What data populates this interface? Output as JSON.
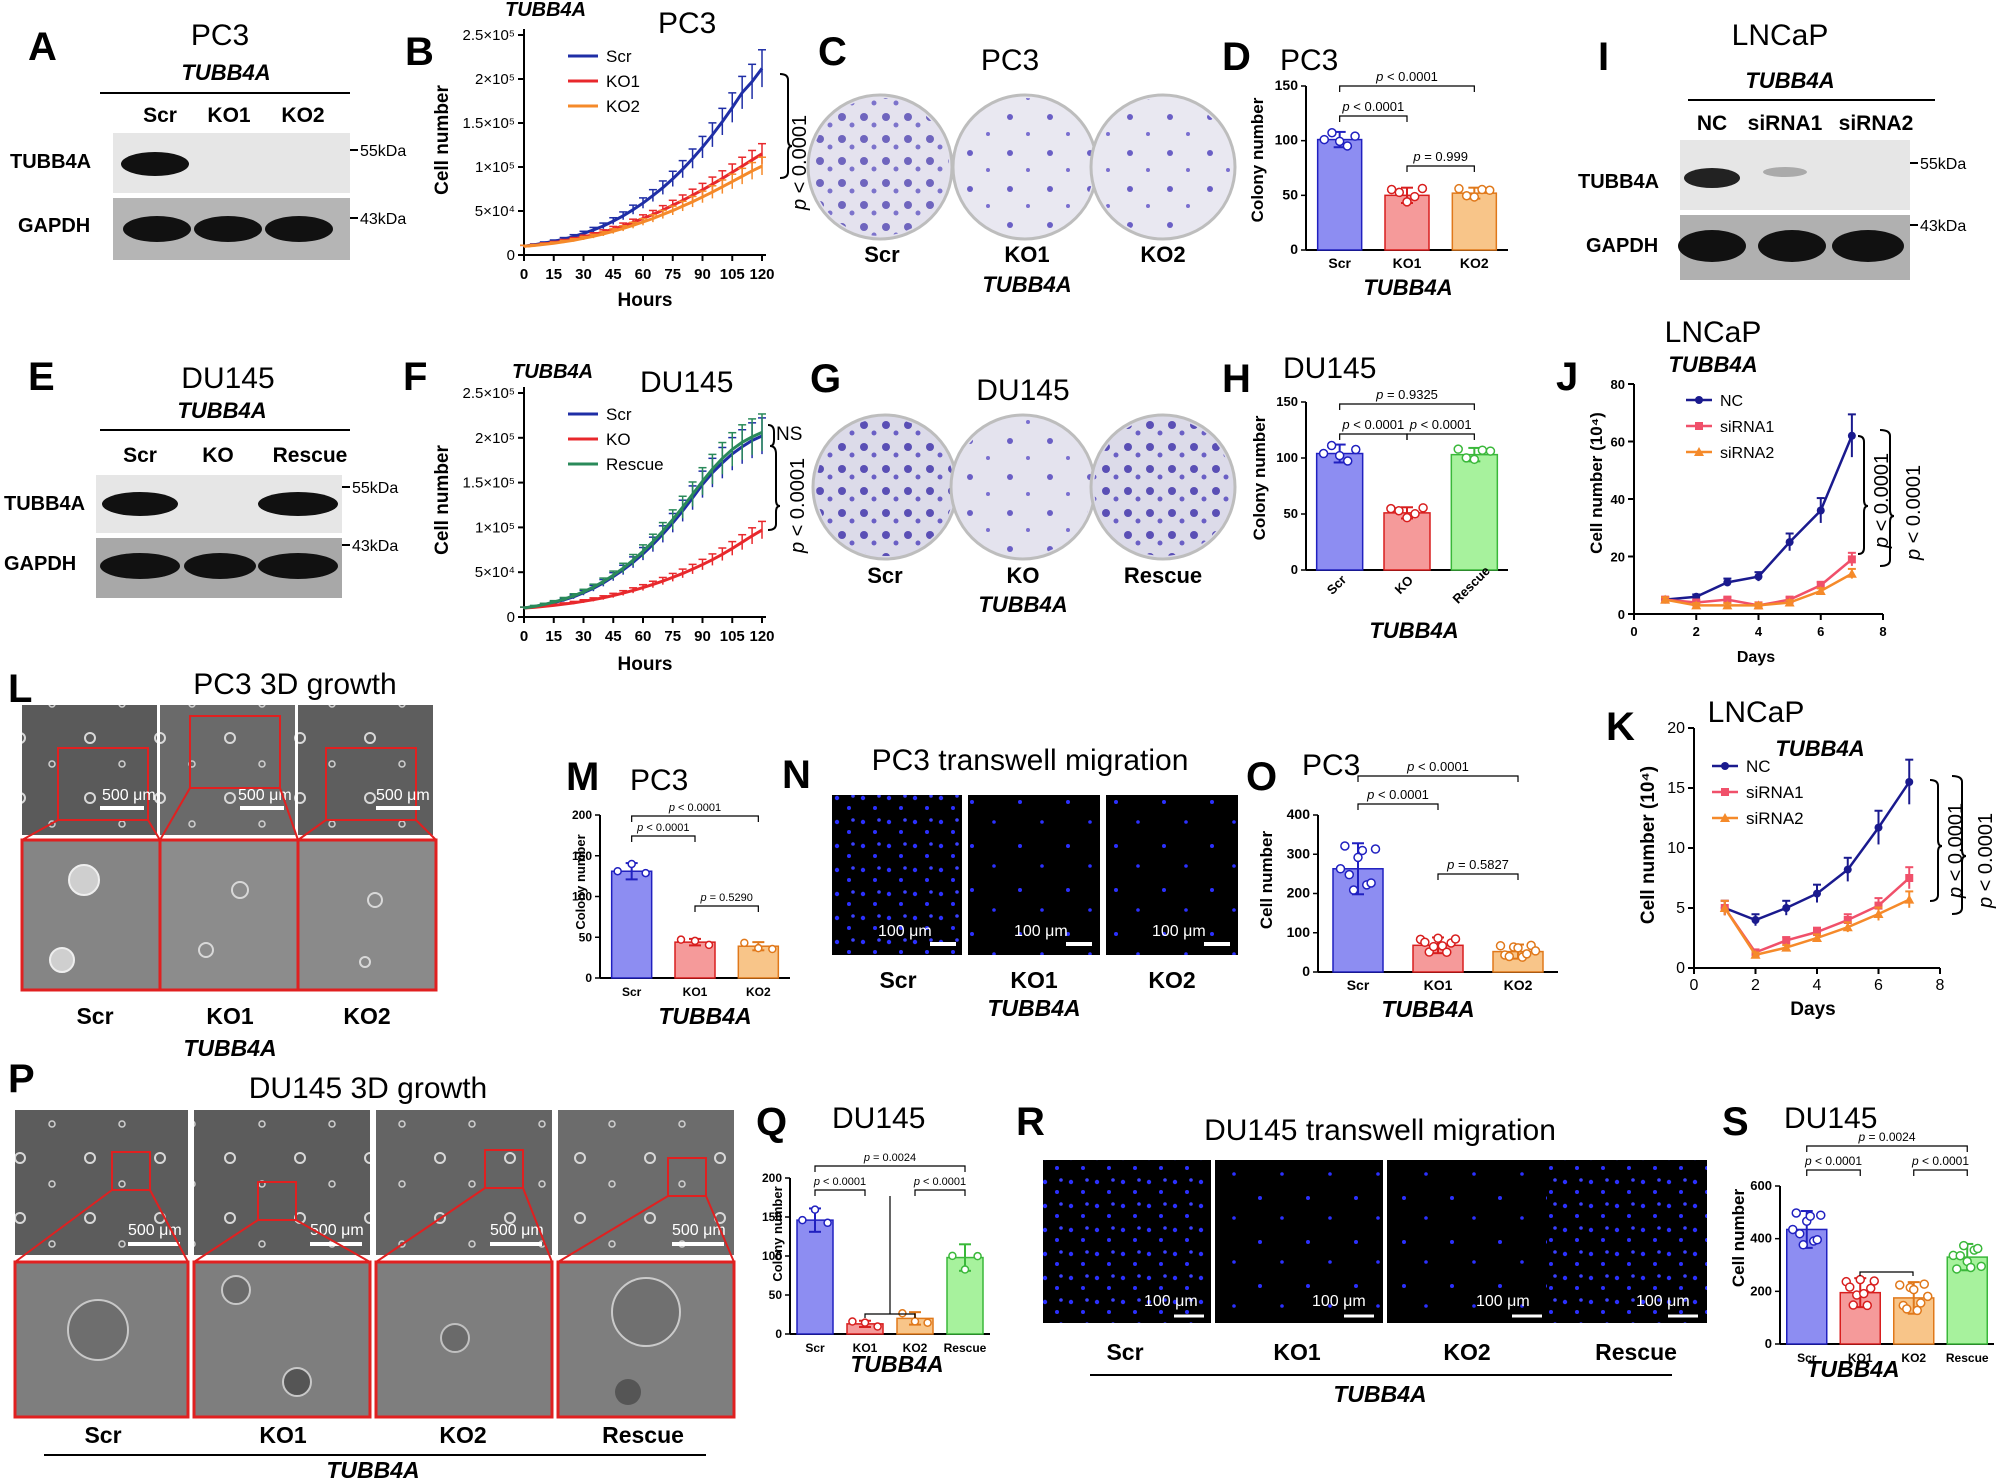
{
  "panel_letters": {
    "A": "A",
    "B": "B",
    "C": "C",
    "D": "D",
    "E": "E",
    "F": "F",
    "G": "G",
    "H": "H",
    "I": "I",
    "J": "J",
    "K": "K",
    "L": "L",
    "M": "M",
    "N": "N",
    "O": "O",
    "P": "P",
    "Q": "Q",
    "R": "R",
    "S": "S"
  },
  "gene": "TUBB4A",
  "cells": {
    "pc3": "PC3",
    "du145": "DU145",
    "lncap": "LNCaP"
  },
  "labels": {
    "scr": "Scr",
    "ko": "KO",
    "ko1": "KO1",
    "ko2": "KO2",
    "rescue": "Rescue",
    "nc": "NC",
    "sirna1": "siRNA1",
    "sirna2": "siRNA2",
    "tubb4a_band": "TUBB4A",
    "gapdh_band": "GAPDH",
    "kda55": "55kDa",
    "kda43": "43kDa",
    "hours": "Hours",
    "days": "Days",
    "cell_number": "Cell number",
    "colony_number": "Colony number",
    "cell_number_1e4": "Cell number (10⁴)",
    "ns": "NS",
    "bar500": "500 μm",
    "bar100": "100 μm"
  },
  "titles": {
    "pc3_3d": "PC3 3D growth",
    "du145_3d": "DU145 3D growth",
    "pc3_tw": "PC3 transwell migration",
    "du145_tw": "DU145 transwell migration"
  },
  "pvals": {
    "p0001": "p < 0.0001",
    "p_italic": "p",
    "lt0001": "< 0.0001",
    "d_999": "p = 0.999",
    "h_9325": "p = 0.9325",
    "m_5290": "p = 0.5290",
    "o_5827": "p = 0.5827",
    "q_0024": "p = 0.0024",
    "s_0024": "p = 0.0024"
  },
  "colors": {
    "blue": "#1f2ea6",
    "blue_bar": "#8d8df2",
    "red": "#e8282c",
    "red_bar": "#f59a9a",
    "orange": "#f58a2a",
    "orange_bar": "#f8c589",
    "green": "#2a8a5a",
    "green_bar": "#a7f29d",
    "navy": "#1a1a8e",
    "pink": "#f0506a"
  },
  "chart_data": [
    {
      "panel": "B",
      "type": "line",
      "title": "PC3",
      "xlabel": "Hours",
      "ylabel": "Cell number",
      "xlim": [
        0,
        120
      ],
      "ylim": [
        0,
        250000
      ],
      "x": [
        0,
        5,
        10,
        15,
        20,
        25,
        30,
        35,
        40,
        45,
        50,
        55,
        60,
        65,
        70,
        75,
        80,
        85,
        90,
        95,
        100,
        105,
        110,
        115,
        120
      ],
      "series": [
        {
          "name": "Scr",
          "values": [
            10000,
            11500,
            13500,
            15500,
            18000,
            21000,
            24500,
            28500,
            33000,
            38500,
            44500,
            51500,
            59000,
            67500,
            76500,
            86500,
            97500,
            109500,
            122500,
            136500,
            151500,
            167500,
            184500,
            197000,
            212000
          ]
        },
        {
          "name": "KO1",
          "values": [
            10000,
            11000,
            12500,
            14000,
            16000,
            18000,
            20500,
            23000,
            26000,
            29500,
            33000,
            37000,
            41500,
            46000,
            51000,
            56500,
            62000,
            68000,
            74000,
            80500,
            87000,
            94000,
            101000,
            108000,
            115000
          ]
        },
        {
          "name": "KO2",
          "values": [
            10000,
            10800,
            12000,
            13300,
            15000,
            16800,
            19000,
            21300,
            24000,
            27000,
            30200,
            33700,
            37500,
            41500,
            46000,
            50500,
            55500,
            60500,
            66000,
            71500,
            77500,
            83500,
            89500,
            95500,
            101000
          ]
        }
      ]
    },
    {
      "panel": "D",
      "type": "bar",
      "title": "PC3",
      "xlabel": "TUBB4A",
      "ylabel": "Colony number",
      "ylim": [
        0,
        150
      ],
      "categories": [
        "Scr",
        "KO1",
        "KO2"
      ],
      "values": [
        101,
        50,
        52
      ],
      "errors": [
        7,
        7,
        5
      ]
    },
    {
      "panel": "F",
      "type": "line",
      "title": "DU145",
      "xlabel": "Hours",
      "ylabel": "Cell number",
      "xlim": [
        0,
        120
      ],
      "ylim": [
        0,
        250000
      ],
      "x": [
        0,
        5,
        10,
        15,
        20,
        25,
        30,
        35,
        40,
        45,
        50,
        55,
        60,
        65,
        70,
        75,
        80,
        85,
        90,
        95,
        100,
        105,
        110,
        115,
        120
      ],
      "series": [
        {
          "name": "Scr",
          "values": [
            10000,
            11500,
            13500,
            16000,
            19000,
            22500,
            27000,
            32000,
            38000,
            45000,
            52500,
            61000,
            70500,
            81000,
            92500,
            105000,
            118500,
            133000,
            148000,
            161000,
            172000,
            182000,
            190000,
            197000,
            202000
          ]
        },
        {
          "name": "KO",
          "values": [
            10000,
            10800,
            11800,
            13000,
            14300,
            15800,
            17500,
            19400,
            21500,
            24000,
            26700,
            29600,
            32800,
            36300,
            40100,
            44200,
            48600,
            53400,
            58500,
            64000,
            70000,
            76500,
            83500,
            90500,
            97000
          ]
        },
        {
          "name": "Rescue",
          "values": [
            10000,
            11700,
            13900,
            16600,
            19800,
            23600,
            28100,
            33300,
            39500,
            46600,
            54500,
            63400,
            73200,
            84000,
            95800,
            108700,
            122500,
            137000,
            151500,
            165000,
            177000,
            187000,
            195000,
            201000,
            206000
          ]
        }
      ]
    },
    {
      "panel": "H",
      "type": "bar",
      "title": "DU145",
      "xlabel": "TUBB4A",
      "ylabel": "Colony number",
      "ylim": [
        0,
        150
      ],
      "categories": [
        "Scr",
        "KO",
        "Rescue"
      ],
      "values": [
        104,
        51,
        103
      ],
      "errors": [
        8,
        5,
        6
      ]
    },
    {
      "panel": "J",
      "type": "line",
      "title": "LNCaP",
      "xlabel": "Days",
      "ylabel": "Cell number (10⁴)",
      "xlim": [
        0,
        8
      ],
      "ylim": [
        0,
        80
      ],
      "x": [
        1,
        2,
        3,
        4,
        5,
        6,
        7
      ],
      "series": [
        {
          "name": "NC",
          "values": [
            5,
            6,
            11,
            13,
            25,
            36,
            62
          ]
        },
        {
          "name": "siRNA1",
          "values": [
            5,
            4,
            5,
            3,
            5,
            10,
            19
          ]
        },
        {
          "name": "siRNA2",
          "values": [
            5,
            3,
            3,
            3,
            4,
            8,
            14
          ]
        }
      ]
    },
    {
      "panel": "K",
      "type": "line",
      "title": "LNCaP",
      "xlabel": "Days",
      "ylabel": "Cell number (10⁴)",
      "xlim": [
        0,
        8
      ],
      "ylim": [
        0,
        20
      ],
      "x": [
        1,
        2,
        3,
        4,
        5,
        6,
        7
      ],
      "series": [
        {
          "name": "NC",
          "values": [
            5,
            4,
            5,
            6.2,
            8.2,
            11.7,
            15.5
          ]
        },
        {
          "name": "siRNA1",
          "values": [
            5,
            1.3,
            2.3,
            3,
            4,
            5.2,
            7.5
          ]
        },
        {
          "name": "siRNA2",
          "values": [
            5,
            1.1,
            1.7,
            2.5,
            3.4,
            4.5,
            5.7
          ]
        }
      ]
    },
    {
      "panel": "M",
      "type": "bar",
      "title": "PC3",
      "xlabel": "TUBB4A",
      "ylabel": "Colony number",
      "ylim": [
        0,
        200
      ],
      "categories": [
        "Scr",
        "KO1",
        "KO2"
      ],
      "values": [
        131,
        44,
        39
      ],
      "errors": [
        10,
        4,
        5
      ]
    },
    {
      "panel": "O",
      "type": "bar",
      "title": "PC3",
      "xlabel": "TUBB4A",
      "ylabel": "Cell number",
      "ylim": [
        0,
        400
      ],
      "categories": [
        "Scr",
        "KO1",
        "KO2"
      ],
      "values": [
        263,
        68,
        52
      ],
      "errors": [
        65,
        20,
        18
      ]
    },
    {
      "panel": "Q",
      "type": "bar",
      "title": "DU145",
      "xlabel": "TUBB4A",
      "ylabel": "Colony number",
      "ylim": [
        0,
        200
      ],
      "categories": [
        "Scr",
        "KO1",
        "KO2",
        "Rescue"
      ],
      "values": [
        146,
        13,
        20,
        98
      ],
      "errors": [
        15,
        4,
        8,
        17
      ]
    },
    {
      "panel": "S",
      "type": "bar",
      "title": "DU145",
      "xlabel": "TUBB4A",
      "ylabel": "Cell number",
      "ylim": [
        0,
        600
      ],
      "categories": [
        "Scr",
        "KO1",
        "KO2",
        "Rescue"
      ],
      "values": [
        435,
        195,
        175,
        330
      ],
      "errors": [
        70,
        55,
        60,
        50
      ]
    }
  ]
}
